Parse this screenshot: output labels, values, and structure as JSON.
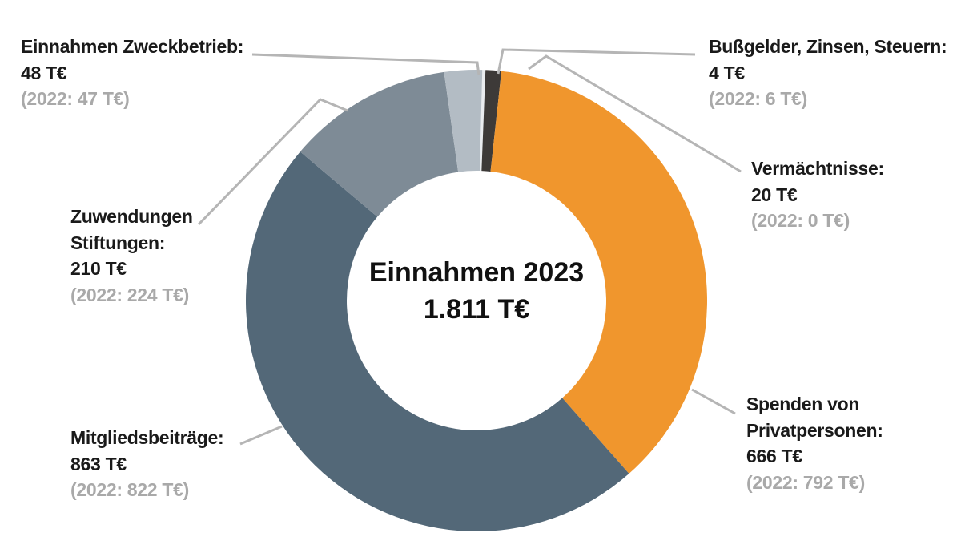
{
  "chart_data": {
    "type": "donut",
    "center": {
      "title": "Einnahmen 2023",
      "value": "1.811 T€"
    },
    "unit": "T€",
    "total": 1811,
    "segments": [
      {
        "key": "bussgelder",
        "name": "Bußgelder, Zinsen, Steuern:",
        "name_lines": [
          "Bußgelder, Zinsen, Steuern:"
        ],
        "value": 4,
        "value_label": "4 T€",
        "prev_label": "(2022: 6 T€)",
        "color": "#e9ecef"
      },
      {
        "key": "vermaechtnisse",
        "name": "Vermächtnisse:",
        "name_lines": [
          "Vermächtnisse:"
        ],
        "value": 20,
        "value_label": "20 T€",
        "prev_label": "(2022: 0 T€)",
        "color": "#3d3a38"
      },
      {
        "key": "spenden",
        "name": "Spenden von Privatpersonen:",
        "name_lines": [
          "Spenden von",
          "Privatpersonen:"
        ],
        "value": 666,
        "value_label": "666 T€",
        "prev_label": "(2022: 792 T€)",
        "color": "#f0962d"
      },
      {
        "key": "mitglieder",
        "name": "Mitgliedsbeiträge:",
        "name_lines": [
          "Mitgliedsbeiträge:"
        ],
        "value": 863,
        "value_label": "863 T€",
        "prev_label": "(2022: 822 T€)",
        "color": "#536878"
      },
      {
        "key": "stiftungen",
        "name": "Zuwendungen Stiftungen:",
        "name_lines": [
          "Zuwendungen",
          "Stiftungen:"
        ],
        "value": 210,
        "value_label": "210 T€",
        "prev_label": "(2022: 224 T€)",
        "color": "#7e8b96"
      },
      {
        "key": "zweckbetrieb",
        "name": "Einnahmen Zweckbetrieb:",
        "name_lines": [
          "Einnahmen Zweckbetrieb:"
        ],
        "value": 48,
        "value_label": "48 T€",
        "prev_label": "(2022: 47 T€)",
        "color": "#b3bcc4"
      }
    ],
    "colors": {
      "leader_line": "#b5b5b5",
      "label_text": "#1a1a1a",
      "prev_text": "#a9a9a9"
    }
  }
}
